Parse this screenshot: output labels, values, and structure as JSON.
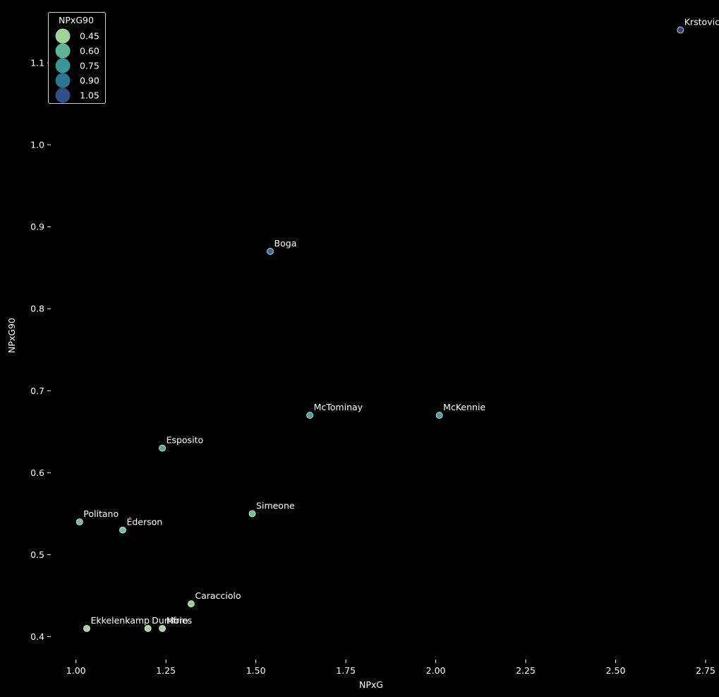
{
  "chart_data": {
    "type": "scatter",
    "title": "",
    "xlabel": "NPxG",
    "ylabel": "NPxG90",
    "xlim": [
      0.93,
      2.75
    ],
    "ylim": [
      0.372,
      1.168
    ],
    "x_ticks": [
      "1.00",
      "1.25",
      "1.50",
      "1.75",
      "2.00",
      "2.25",
      "2.50",
      "2.75"
    ],
    "y_ticks": [
      "0.4",
      "0.5",
      "0.6",
      "0.7",
      "0.8",
      "0.9",
      "1.0",
      "1.1"
    ],
    "grid": false,
    "points": [
      {
        "label": "Krstovic",
        "x": 2.68,
        "y": 1.14
      },
      {
        "label": "Boga",
        "x": 1.54,
        "y": 0.87
      },
      {
        "label": "McTominay",
        "x": 1.65,
        "y": 0.67
      },
      {
        "label": "McKennie",
        "x": 2.01,
        "y": 0.67
      },
      {
        "label": "Esposito",
        "x": 1.24,
        "y": 0.63
      },
      {
        "label": "Simeone",
        "x": 1.49,
        "y": 0.55
      },
      {
        "label": "Politano",
        "x": 1.01,
        "y": 0.54
      },
      {
        "label": "Éderson",
        "x": 1.13,
        "y": 0.53
      },
      {
        "label": "Caracciolo",
        "x": 1.32,
        "y": 0.44
      },
      {
        "label": "Ekkelenkamp",
        "x": 1.03,
        "y": 0.41
      },
      {
        "label": "Dumfries",
        "x": 1.2,
        "y": 0.41
      },
      {
        "label": "Moro",
        "x": 1.24,
        "y": 0.41
      }
    ],
    "legend": {
      "title": "NPxG90",
      "placement": "top-left",
      "entries": [
        {
          "label": "0.45",
          "color": "#9fd39a"
        },
        {
          "label": "0.60",
          "color": "#5db597"
        },
        {
          "label": "0.75",
          "color": "#3a9693"
        },
        {
          "label": "0.90",
          "color": "#2b7590"
        },
        {
          "label": "1.05",
          "color": "#2f4f87"
        }
      ]
    },
    "color_scale": {
      "domain": [
        0.41,
        1.14
      ],
      "colors": [
        "#a3d69b",
        "#6abd97",
        "#3f9c94",
        "#2c7a91",
        "#345088",
        "#3b3f80"
      ]
    }
  }
}
